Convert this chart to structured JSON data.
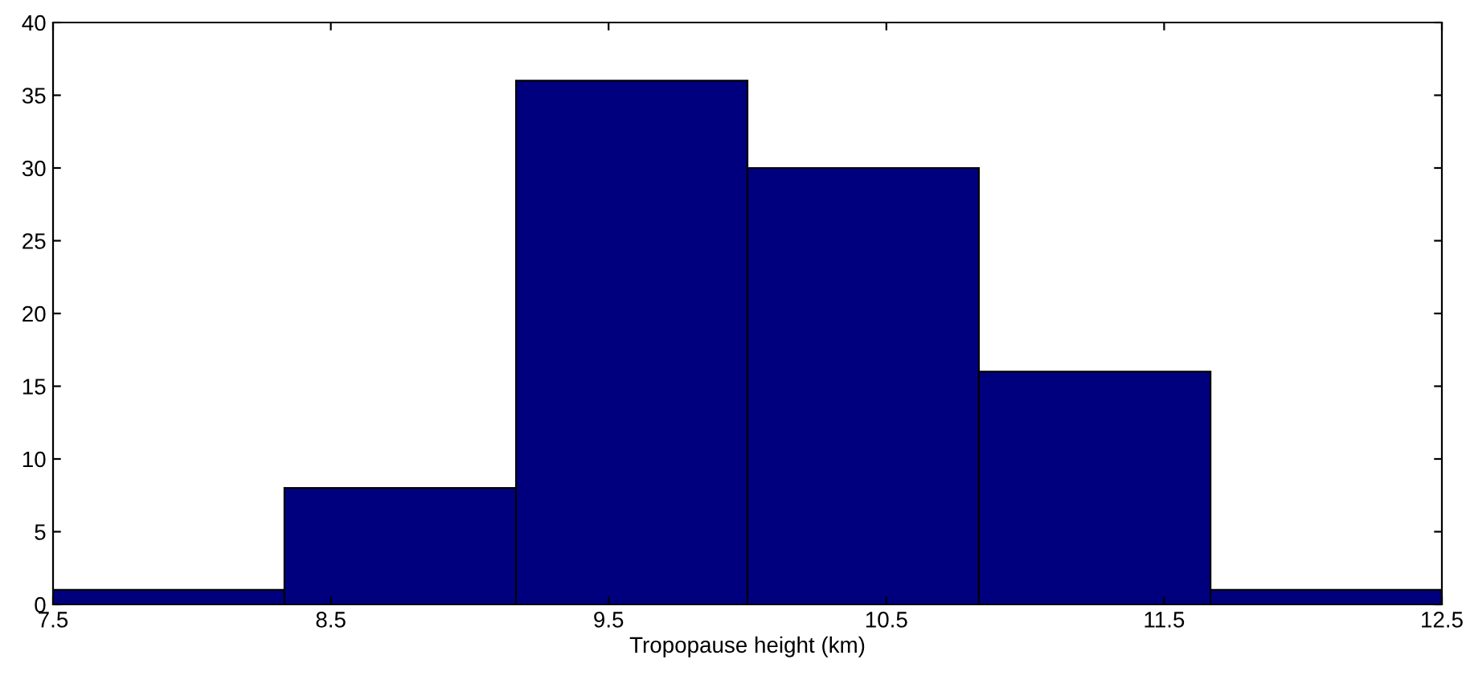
{
  "chart_data": {
    "type": "histogram",
    "xlabel": "Tropopause height (km)",
    "bins": [
      7.5,
      8.333,
      9.167,
      10,
      10.833,
      11.667,
      12.5
    ],
    "values": [
      1,
      8,
      36,
      30,
      16,
      1
    ],
    "color": "#00007f",
    "xlim": [
      7.5,
      12.5
    ],
    "xticks": [
      7.5,
      8.5,
      9.5,
      10.5,
      11.5,
      12.5
    ],
    "ylim": [
      0,
      40
    ],
    "yticks": [
      0,
      5,
      10,
      15,
      20,
      25,
      30,
      35,
      40
    ],
    "grid": false
  }
}
